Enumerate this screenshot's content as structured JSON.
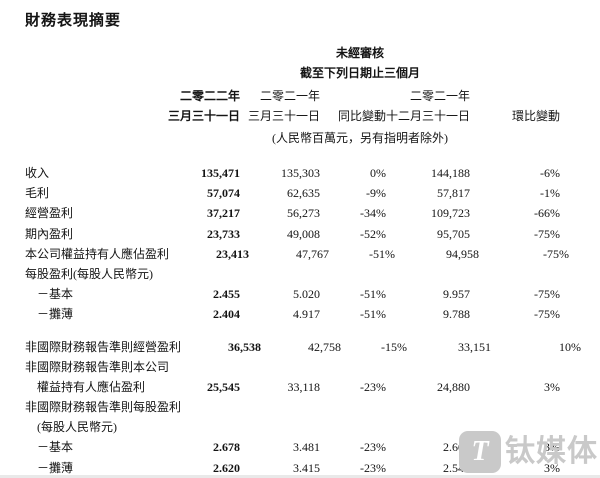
{
  "page": {
    "title": "財務表現摘要",
    "background_color": "#ffffff",
    "text_color": "#141414"
  },
  "table": {
    "header": {
      "unaudited": "未經審核",
      "period_title": "截至下列日期止三個月",
      "years": {
        "c2": "二零二二年",
        "c3": "二零二一年",
        "c5": "二零二一年"
      },
      "dates": {
        "c2": "三月三十一日",
        "c3": "三月三十一日",
        "c4": "同比變動",
        "c5": "十二月三十一日",
        "c6": "環比變動"
      },
      "note": "(人民幣百萬元，另有指明者除外)"
    },
    "rows": [
      {
        "label": "收入",
        "indent": 0,
        "gap_before": false,
        "values": [
          "135,471",
          "135,303",
          "0%",
          "144,188",
          "-6%"
        ]
      },
      {
        "label": "毛利",
        "indent": 0,
        "gap_before": false,
        "values": [
          "57,074",
          "62,635",
          "-9%",
          "57,817",
          "-1%"
        ]
      },
      {
        "label": "經營盈利",
        "indent": 0,
        "gap_before": false,
        "values": [
          "37,217",
          "56,273",
          "-34%",
          "109,723",
          "-66%"
        ]
      },
      {
        "label": "期內盈利",
        "indent": 0,
        "gap_before": false,
        "values": [
          "23,733",
          "49,008",
          "-52%",
          "95,705",
          "-75%"
        ]
      },
      {
        "label": "本公司權益持有人應佔盈利",
        "indent": 0,
        "gap_before": false,
        "values": [
          "23,413",
          "47,767",
          "-51%",
          "94,958",
          "-75%"
        ]
      },
      {
        "label": "每股盈利(每股人民幣元)",
        "indent": 0,
        "gap_before": false,
        "values": [
          "",
          "",
          "",
          "",
          ""
        ]
      },
      {
        "label": "－基本",
        "indent": 1,
        "gap_before": false,
        "values": [
          "2.455",
          "5.020",
          "-51%",
          "9.957",
          "-75%"
        ]
      },
      {
        "label": "－攤薄",
        "indent": 1,
        "gap_before": false,
        "values": [
          "2.404",
          "4.917",
          "-51%",
          "9.788",
          "-75%"
        ]
      },
      {
        "label": "非國際財務報告準則經營盈利",
        "indent": 0,
        "gap_before": true,
        "values": [
          "36,538",
          "42,758",
          "-15%",
          "33,151",
          "10%"
        ]
      },
      {
        "label": "非國際財務報告準則本公司",
        "indent": 0,
        "gap_before": false,
        "values": [
          "",
          "",
          "",
          "",
          ""
        ]
      },
      {
        "label": "權益持有人應佔盈利",
        "indent": 1,
        "gap_before": false,
        "values": [
          "25,545",
          "33,118",
          "-23%",
          "24,880",
          "3%"
        ]
      },
      {
        "label": "非國際財務報告準則每股盈利",
        "indent": 0,
        "gap_before": false,
        "values": [
          "",
          "",
          "",
          "",
          ""
        ]
      },
      {
        "label": "(每股人民幣元)",
        "indent": 1,
        "gap_before": false,
        "values": [
          "",
          "",
          "",
          "",
          ""
        ]
      },
      {
        "label": "－基本",
        "indent": 1,
        "gap_before": false,
        "values": [
          "2.678",
          "3.481",
          "-23%",
          "2.609",
          "3%"
        ]
      },
      {
        "label": "－攤薄",
        "indent": 1,
        "gap_before": false,
        "values": [
          "2.620",
          "3.415",
          "-23%",
          "2.547",
          "3%"
        ]
      }
    ]
  },
  "watermark": {
    "logo_letter": "T",
    "brand": "钛媒体",
    "color": "#c9c9c9"
  }
}
